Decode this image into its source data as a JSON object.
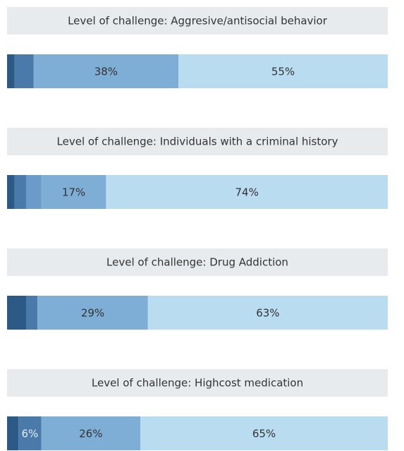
{
  "chart_data": [
    {
      "type": "bar",
      "orientation": "horizontal",
      "stacked": true,
      "title": "Level of challenge: Aggresive/antisocial behavior",
      "values": [
        2,
        5,
        38,
        55
      ],
      "value_labels": [
        null,
        null,
        "38%",
        "55%"
      ],
      "colors": [
        "#2d5986",
        "#4a7aaa",
        "#7eaed5",
        "#b9dcf0"
      ],
      "xlim": [
        0,
        100
      ]
    },
    {
      "type": "bar",
      "orientation": "horizontal",
      "stacked": true,
      "title": "Level of challenge: Individuals with a criminal history",
      "values": [
        2,
        3,
        4,
        17,
        74
      ],
      "value_labels": [
        null,
        null,
        null,
        "17%",
        "74%"
      ],
      "colors": [
        "#2d5986",
        "#4a7aaa",
        "#6a9bc9",
        "#7eaed5",
        "#b9dcf0"
      ],
      "xlim": [
        0,
        100
      ]
    },
    {
      "type": "bar",
      "orientation": "horizontal",
      "stacked": true,
      "title": "Level of challenge: Drug Addiction",
      "values": [
        5,
        3,
        29,
        63
      ],
      "value_labels": [
        null,
        null,
        "29%",
        "63%"
      ],
      "colors": [
        "#2d5986",
        "#4a7aaa",
        "#7eaed5",
        "#b9dcf0"
      ],
      "xlim": [
        0,
        100
      ]
    },
    {
      "type": "bar",
      "orientation": "horizontal",
      "stacked": true,
      "title": "Level of challenge: Highcost medication",
      "values": [
        3,
        6,
        26,
        65
      ],
      "value_labels": [
        null,
        "6%",
        "26%",
        "65%"
      ],
      "colors": [
        "#2d5986",
        "#4a7aaa",
        "#7eaed5",
        "#b9dcf0"
      ],
      "xlim": [
        0,
        100
      ]
    }
  ]
}
